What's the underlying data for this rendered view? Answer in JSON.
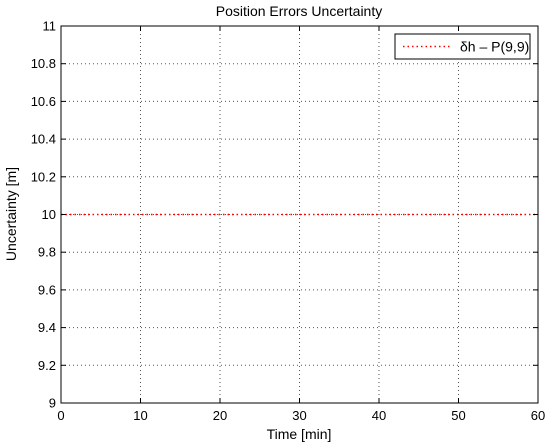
{
  "chart_data": {
    "type": "line",
    "title": "Position Errors Uncertainty",
    "xlabel": "Time [min]",
    "ylabel": "Uncertainty [m]",
    "xlim": [
      0,
      60
    ],
    "ylim": [
      9,
      11
    ],
    "xticks": [
      0,
      10,
      20,
      30,
      40,
      50,
      60
    ],
    "yticks": [
      9,
      9.2,
      9.4,
      9.6,
      9.8,
      10,
      10.2,
      10.4,
      10.6,
      10.8,
      11
    ],
    "xtick_labels": [
      "0",
      "10",
      "20",
      "30",
      "40",
      "50",
      "60"
    ],
    "ytick_labels": [
      "9",
      "9.2",
      "9.4",
      "9.6",
      "9.8",
      "10",
      "10.2",
      "10.4",
      "10.6",
      "10.8",
      "11"
    ],
    "grid": true,
    "legend_position": "top-right",
    "series": [
      {
        "name": "δh – P(9,9)",
        "color": "#ff0000",
        "line_style": "dotted",
        "x": [
          0,
          60
        ],
        "y": [
          10,
          10
        ]
      }
    ]
  }
}
